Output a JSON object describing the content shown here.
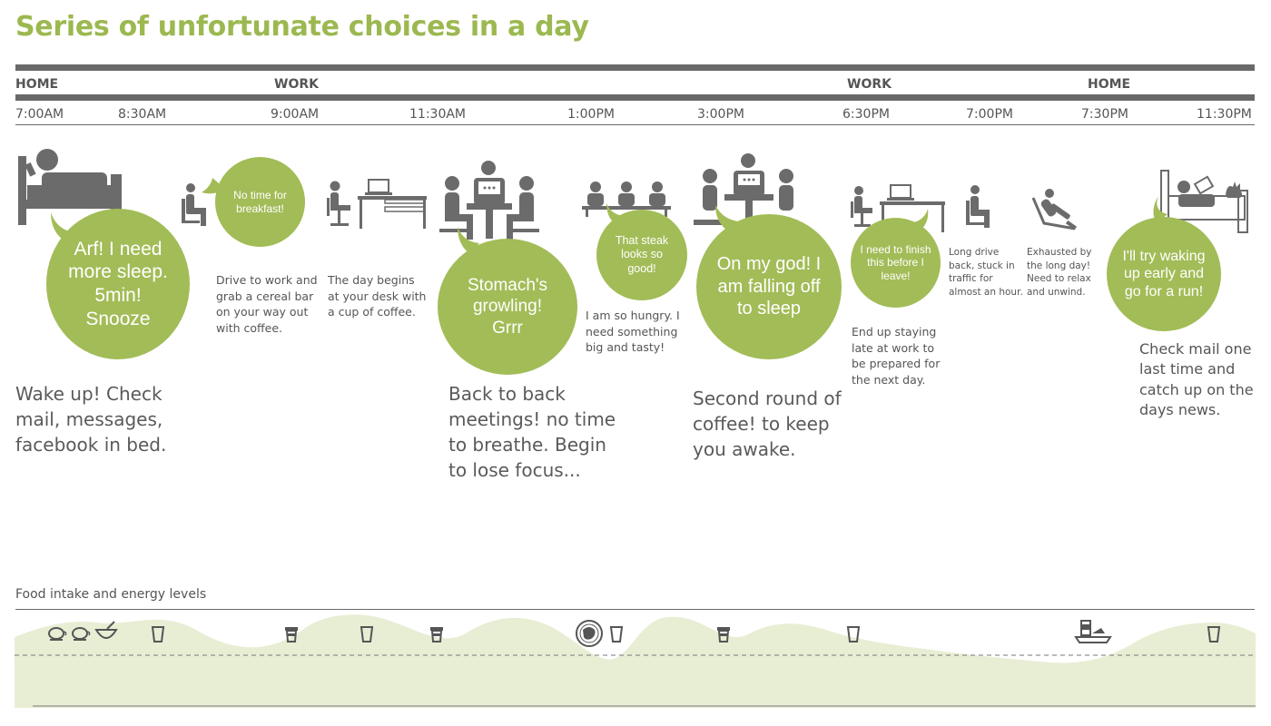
{
  "title": "Series of unfortunate choices in a day",
  "locations": [
    "HOME",
    "WORK",
    "WORK",
    "HOME"
  ],
  "times": [
    "7:00AM",
    "8:30AM",
    "9:00AM",
    "11:30AM",
    "1:00PM",
    "3:00PM",
    "6:30PM",
    "7:00PM",
    "7:30PM",
    "11:30PM"
  ],
  "bubbles": [
    "Arf! I need more sleep. 5min! Snooze",
    "No time for breakfast!",
    "Stomach's growling! Grrr",
    "That steak looks so good!",
    "On my god! I am falling off to sleep",
    "I need to finish this before I leave!",
    "I'll try waking up early and go for a run!"
  ],
  "captions": [
    "Wake up! Check mail, messages, facebook in bed.",
    "Drive to work and grab a cereal bar on your way out with coffee.",
    "The day begins at your desk with a cup of coffee.",
    "Back to back meetings! no time to breathe. Begin to lose focus...",
    "I am so hungry. I need something big and tasty!",
    "Second round of coffee! to keep you awake.",
    "End up staying late at work to be prepared for the next day.",
    "Long drive back, stuck in traffic for almost an hour.",
    "Exhausted by the long day! Need to relax and unwind.",
    "Check mail one last time and catch up on the days news."
  ],
  "icons": {
    "bed": "person-in-bed-icon",
    "chair": "person-sitting-icon",
    "desk": "person-at-desk-icon",
    "meeting": "meeting-icon",
    "cafeteria": "cafeteria-icon",
    "recliner": "person-reclining-icon",
    "couch": "person-on-couch-icon",
    "tea": "tea-cup-icon",
    "cereal": "cereal-bowl-icon",
    "cup": "cup-icon",
    "coffee": "coffee-cup-icon",
    "plate": "plate-icon",
    "tray": "dinner-tray-icon"
  },
  "chart": {
    "label": "Food intake and energy levels"
  },
  "colors": {
    "accent": "#9cb850",
    "bubble": "#a2bc57",
    "energy_fill": "#e8eed4",
    "rule": "#696969",
    "pictogram": "#6b6b6b"
  }
}
